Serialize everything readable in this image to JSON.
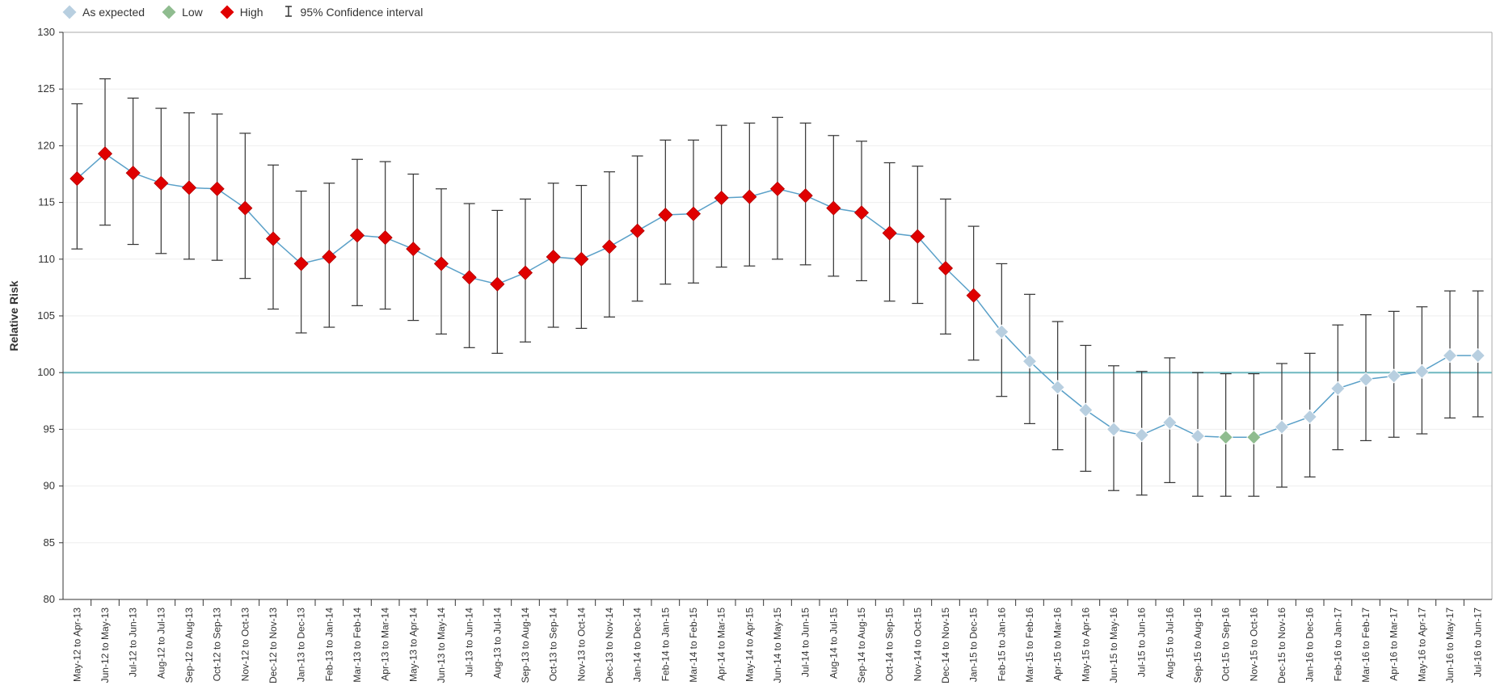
{
  "legend": {
    "items": [
      {
        "label": "As expected",
        "color": "#b8cfe0"
      },
      {
        "label": "Low",
        "color": "#8fbc8f"
      },
      {
        "label": "High",
        "color": "#e00000"
      }
    ],
    "ci_label": "95% Confidence interval"
  },
  "chart_data": {
    "type": "scatter",
    "title": "",
    "xlabel": "",
    "ylabel": "Relative Risk",
    "ylim": [
      80,
      130
    ],
    "yticks": [
      80,
      85,
      90,
      95,
      100,
      105,
      110,
      115,
      120,
      125,
      130
    ],
    "reference_line": 100,
    "reference_color": "#6fb8c0",
    "line_color": "#5aa0c8",
    "grid": "horizontal",
    "legend_position": "top-left",
    "status_colors": {
      "expected": "#b8cfe0",
      "low": "#8fbc8f",
      "high": "#e00000"
    },
    "points": [
      {
        "label": "May-12 to Apr-13",
        "value": 117.1,
        "lower": 110.9,
        "upper": 123.7,
        "status": "high"
      },
      {
        "label": "Jun-12 to May-13",
        "value": 119.3,
        "lower": 113.0,
        "upper": 125.9,
        "status": "high"
      },
      {
        "label": "Jul-12 to Jun-13",
        "value": 117.6,
        "lower": 111.3,
        "upper": 124.2,
        "status": "high"
      },
      {
        "label": "Aug-12 to Jul-13",
        "value": 116.7,
        "lower": 110.5,
        "upper": 123.3,
        "status": "high"
      },
      {
        "label": "Sep-12 to Aug-13",
        "value": 116.3,
        "lower": 110.0,
        "upper": 122.9,
        "status": "high"
      },
      {
        "label": "Oct-12 to Sep-13",
        "value": 116.2,
        "lower": 109.9,
        "upper": 122.8,
        "status": "high"
      },
      {
        "label": "Nov-12 to Oct-13",
        "value": 114.5,
        "lower": 108.3,
        "upper": 121.1,
        "status": "high"
      },
      {
        "label": "Dec-12 to Nov-13",
        "value": 111.8,
        "lower": 105.6,
        "upper": 118.3,
        "status": "high"
      },
      {
        "label": "Jan-13 to Dec-13",
        "value": 109.6,
        "lower": 103.5,
        "upper": 116.0,
        "status": "high"
      },
      {
        "label": "Feb-13 to Jan-14",
        "value": 110.2,
        "lower": 104.0,
        "upper": 116.7,
        "status": "high"
      },
      {
        "label": "Mar-13 to Feb-14",
        "value": 112.1,
        "lower": 105.9,
        "upper": 118.8,
        "status": "high"
      },
      {
        "label": "Apr-13 to Mar-14",
        "value": 111.9,
        "lower": 105.6,
        "upper": 118.6,
        "status": "high"
      },
      {
        "label": "May-13 to Apr-14",
        "value": 110.9,
        "lower": 104.6,
        "upper": 117.5,
        "status": "high"
      },
      {
        "label": "Jun-13 to May-14",
        "value": 109.6,
        "lower": 103.4,
        "upper": 116.2,
        "status": "high"
      },
      {
        "label": "Jul-13 to Jun-14",
        "value": 108.4,
        "lower": 102.2,
        "upper": 114.9,
        "status": "high"
      },
      {
        "label": "Aug-13 to Jul-14",
        "value": 107.8,
        "lower": 101.7,
        "upper": 114.3,
        "status": "high"
      },
      {
        "label": "Sep-13 to Aug-14",
        "value": 108.8,
        "lower": 102.7,
        "upper": 115.3,
        "status": "high"
      },
      {
        "label": "Oct-13 to Sep-14",
        "value": 110.2,
        "lower": 104.0,
        "upper": 116.7,
        "status": "high"
      },
      {
        "label": "Nov-13 to Oct-14",
        "value": 110.0,
        "lower": 103.9,
        "upper": 116.5,
        "status": "high"
      },
      {
        "label": "Dec-13 to Nov-14",
        "value": 111.1,
        "lower": 104.9,
        "upper": 117.7,
        "status": "high"
      },
      {
        "label": "Jan-14 to Dec-14",
        "value": 112.5,
        "lower": 106.3,
        "upper": 119.1,
        "status": "high"
      },
      {
        "label": "Feb-14 to Jan-15",
        "value": 113.9,
        "lower": 107.8,
        "upper": 120.5,
        "status": "high"
      },
      {
        "label": "Mar-14 to Feb-15",
        "value": 114.0,
        "lower": 107.9,
        "upper": 120.5,
        "status": "high"
      },
      {
        "label": "Apr-14 to Mar-15",
        "value": 115.4,
        "lower": 109.3,
        "upper": 121.8,
        "status": "high"
      },
      {
        "label": "May-14 to Apr-15",
        "value": 115.5,
        "lower": 109.4,
        "upper": 122.0,
        "status": "high"
      },
      {
        "label": "Jun-14 to May-15",
        "value": 116.2,
        "lower": 110.0,
        "upper": 122.5,
        "status": "high"
      },
      {
        "label": "Jul-14 to Jun-15",
        "value": 115.6,
        "lower": 109.5,
        "upper": 122.0,
        "status": "high"
      },
      {
        "label": "Aug-14 to Jul-15",
        "value": 114.5,
        "lower": 108.5,
        "upper": 120.9,
        "status": "high"
      },
      {
        "label": "Sep-14 to Aug-15",
        "value": 114.1,
        "lower": 108.1,
        "upper": 120.4,
        "status": "high"
      },
      {
        "label": "Oct-14 to Sep-15",
        "value": 112.3,
        "lower": 106.3,
        "upper": 118.5,
        "status": "high"
      },
      {
        "label": "Nov-14 to Oct-15",
        "value": 112.0,
        "lower": 106.1,
        "upper": 118.2,
        "status": "high"
      },
      {
        "label": "Dec-14 to Nov-15",
        "value": 109.2,
        "lower": 103.4,
        "upper": 115.3,
        "status": "high"
      },
      {
        "label": "Jan-15 to Dec-15",
        "value": 106.8,
        "lower": 101.1,
        "upper": 112.9,
        "status": "high"
      },
      {
        "label": "Feb-15 to Jan-16",
        "value": 103.6,
        "lower": 97.9,
        "upper": 109.6,
        "status": "expected"
      },
      {
        "label": "Mar-15 to Feb-16",
        "value": 101.0,
        "lower": 95.5,
        "upper": 106.9,
        "status": "expected"
      },
      {
        "label": "Apr-15 to Mar-16",
        "value": 98.7,
        "lower": 93.2,
        "upper": 104.5,
        "status": "expected"
      },
      {
        "label": "May-15 to Apr-16",
        "value": 96.7,
        "lower": 91.3,
        "upper": 102.4,
        "status": "expected"
      },
      {
        "label": "Jun-15 to May-16",
        "value": 95.0,
        "lower": 89.6,
        "upper": 100.6,
        "status": "expected"
      },
      {
        "label": "Jul-15 to Jun-16",
        "value": 94.5,
        "lower": 89.2,
        "upper": 100.1,
        "status": "expected"
      },
      {
        "label": "Aug-15 to Jul-16",
        "value": 95.6,
        "lower": 90.3,
        "upper": 101.3,
        "status": "expected"
      },
      {
        "label": "Sep-15 to Aug-16",
        "value": 94.4,
        "lower": 89.1,
        "upper": 100.0,
        "status": "expected"
      },
      {
        "label": "Oct-15 to Sep-16",
        "value": 94.3,
        "lower": 89.1,
        "upper": 99.9,
        "status": "low"
      },
      {
        "label": "Nov-15 to Oct-16",
        "value": 94.3,
        "lower": 89.1,
        "upper": 99.9,
        "status": "low"
      },
      {
        "label": "Dec-15 to Nov-16",
        "value": 95.2,
        "lower": 89.9,
        "upper": 100.8,
        "status": "expected"
      },
      {
        "label": "Jan-16 to Dec-16",
        "value": 96.1,
        "lower": 90.8,
        "upper": 101.7,
        "status": "expected"
      },
      {
        "label": "Feb-16 to Jan-17",
        "value": 98.6,
        "lower": 93.2,
        "upper": 104.2,
        "status": "expected"
      },
      {
        "label": "Mar-16 to Feb-17",
        "value": 99.4,
        "lower": 94.0,
        "upper": 105.1,
        "status": "expected"
      },
      {
        "label": "Apr-16 to Mar-17",
        "value": 99.7,
        "lower": 94.3,
        "upper": 105.4,
        "status": "expected"
      },
      {
        "label": "May-16 to Apr-17",
        "value": 100.1,
        "lower": 94.6,
        "upper": 105.8,
        "status": "expected"
      },
      {
        "label": "Jun-16 to May-17",
        "value": 101.5,
        "lower": 96.0,
        "upper": 107.2,
        "status": "expected"
      },
      {
        "label": "Jul-16 to Jun-17",
        "value": 101.5,
        "lower": 96.1,
        "upper": 107.2,
        "status": "expected"
      }
    ]
  }
}
